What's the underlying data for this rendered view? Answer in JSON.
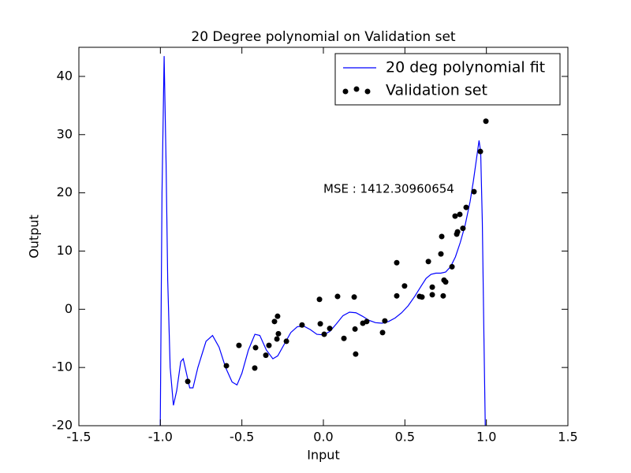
{
  "chart_data": {
    "type": "line_scatter",
    "title": "20 Degree polynomial on Validation set",
    "xlabel": "Input",
    "ylabel": "Output",
    "annotation": "MSE : 1412.30960654",
    "xlim": [
      -1.5,
      1.5
    ],
    "ylim": [
      -20,
      45
    ],
    "xticks": [
      -1.5,
      {
        "value": -1,
        "label": "-1.0"
      },
      -0.5,
      {
        "value": 0,
        "label": "0.0"
      },
      0.5,
      {
        "value": 1,
        "label": "1.0"
      },
      1.5
    ],
    "yticks": [
      -20,
      -10,
      0,
      10,
      20,
      30,
      40
    ],
    "legend": "upper right",
    "series": [
      {
        "name": "20 deg polynomial fit",
        "type": "line",
        "color": "#0000ff",
        "x": [
          -1.002,
          -0.99,
          -0.977,
          -0.965,
          -0.955,
          -0.94,
          -0.92,
          -0.9,
          -0.875,
          -0.86,
          -0.84,
          -0.82,
          -0.8,
          -0.77,
          -0.72,
          -0.68,
          -0.64,
          -0.6,
          -0.56,
          -0.53,
          -0.5,
          -0.46,
          -0.42,
          -0.39,
          -0.35,
          -0.31,
          -0.28,
          -0.24,
          -0.2,
          -0.16,
          -0.12,
          -0.08,
          -0.04,
          0,
          0.04,
          0.08,
          0.12,
          0.16,
          0.2,
          0.24,
          0.28,
          0.32,
          0.36,
          0.4,
          0.44,
          0.48,
          0.52,
          0.56,
          0.6,
          0.63,
          0.66,
          0.69,
          0.72,
          0.75,
          0.78,
          0.81,
          0.84,
          0.87,
          0.9,
          0.92,
          0.94,
          0.955,
          0.965,
          0.975,
          0.985,
          0.993,
          0.998
        ],
        "values": [
          -25,
          20,
          43.5,
          25,
          5,
          -10,
          -16.5,
          -14,
          -9,
          -8.5,
          -11,
          -13.5,
          -13.5,
          -10,
          -5.5,
          -4.5,
          -6.5,
          -10,
          -12.5,
          -13,
          -11,
          -7,
          -4.3,
          -4.5,
          -7,
          -8.5,
          -8,
          -6,
          -4,
          -3,
          -2.9,
          -3.5,
          -4.3,
          -4.4,
          -3.8,
          -2.5,
          -1.1,
          -0.5,
          -0.6,
          -1.2,
          -1.9,
          -2.3,
          -2.4,
          -2.1,
          -1.5,
          -0.6,
          0.6,
          2.2,
          4,
          5.3,
          6,
          6.2,
          6.2,
          6.4,
          7.3,
          9,
          11.5,
          14.5,
          18.5,
          22,
          26,
          29,
          27,
          15,
          -5,
          -20,
          -30
        ]
      },
      {
        "name": "Validation set",
        "type": "scatter",
        "color": "#000000",
        "x": [
          -0.832,
          -0.595,
          -0.518,
          -0.421,
          -0.416,
          -0.353,
          -0.334,
          -0.3,
          -0.285,
          -0.276,
          -0.281,
          -0.227,
          -0.131,
          -0.024,
          -0.019,
          0.005,
          0.039,
          0.087,
          0.126,
          0.189,
          0.194,
          0.198,
          0.242,
          0.266,
          0.363,
          0.377,
          0.45,
          0.45,
          0.498,
          0.59,
          0.605,
          0.644,
          0.668,
          0.668,
          0.721,
          0.726,
          0.735,
          0.74,
          0.75,
          0.789,
          0.808,
          0.818,
          0.823,
          0.837,
          0.856,
          0.876,
          0.924,
          0.963,
          0.997
        ],
        "values": [
          -12.4,
          -9.7,
          -6.2,
          -10.1,
          -6.6,
          -7.9,
          -6.2,
          -2.1,
          -5.1,
          -4.2,
          -1.2,
          -5.5,
          -2.7,
          1.7,
          -2.5,
          -4.3,
          -3.3,
          2.2,
          -5,
          2.1,
          -3.4,
          -7.7,
          -2.4,
          -2.1,
          -4,
          -2,
          2.3,
          8,
          4,
          2.2,
          2.1,
          8.2,
          3.8,
          2.5,
          9.5,
          12.5,
          2.3,
          5,
          4.7,
          7.3,
          16,
          12.9,
          13.3,
          16.3,
          13.9,
          17.5,
          20.2,
          27.1,
          32.3
        ]
      }
    ]
  }
}
